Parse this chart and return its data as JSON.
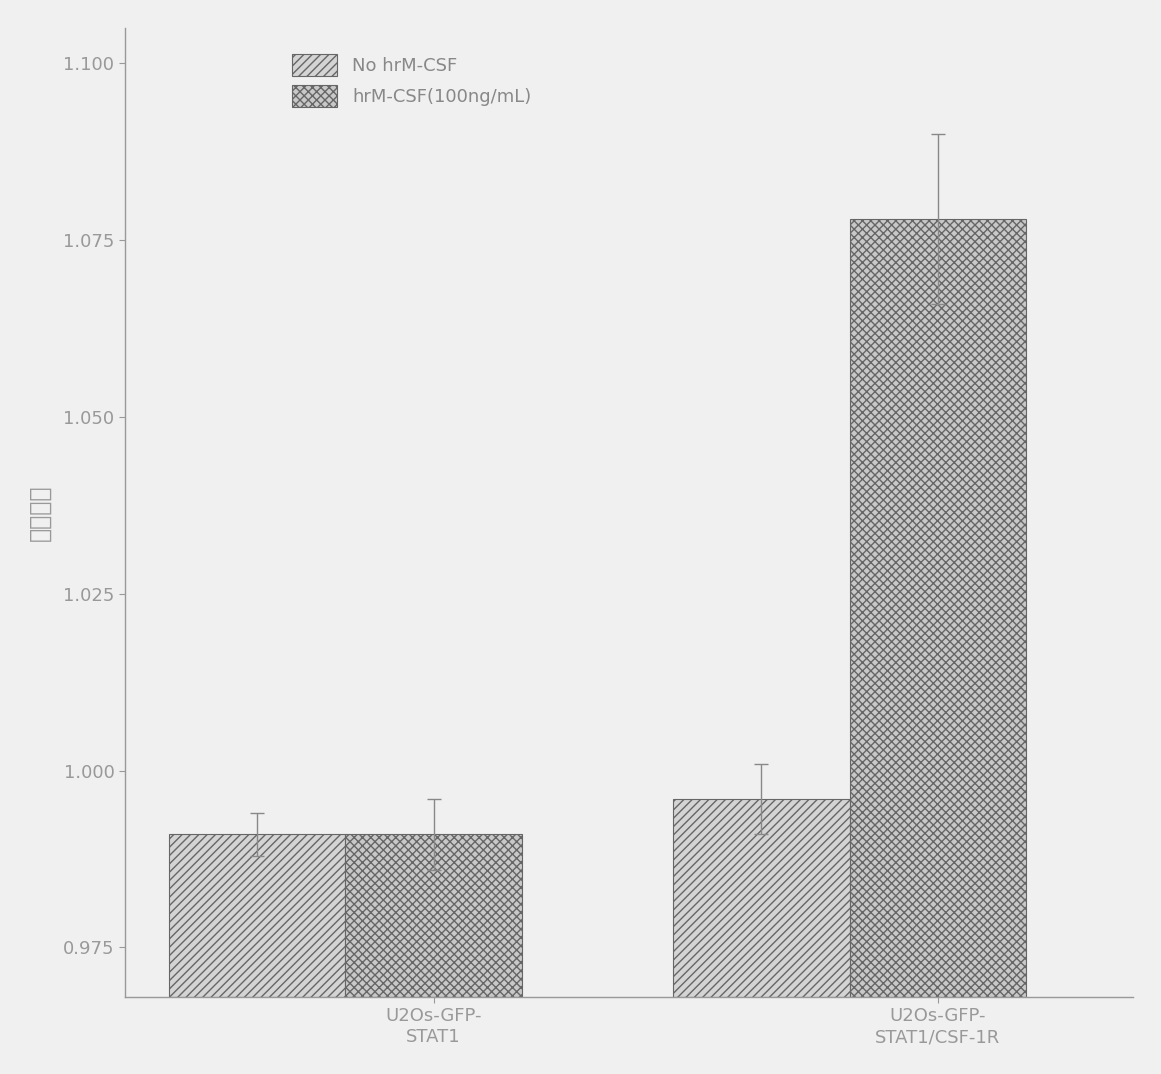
{
  "categories": [
    "U2Os-GFP-\nSTAT1",
    "U2Os-GFP-\nSTAT1/CSF-1R"
  ],
  "series": [
    {
      "label": "No hrM-CSF",
      "values": [
        0.991,
        0.996
      ],
      "errors": [
        0.003,
        0.005
      ],
      "hatch": "////",
      "facecolor": "#d4d4d4",
      "edgecolor": "#666666"
    },
    {
      "label": "hrM-CSF(100ng/mL)",
      "values": [
        0.991,
        1.078
      ],
      "errors": [
        0.005,
        0.012
      ],
      "hatch": "xxxx",
      "facecolor": "#c8c8c8",
      "edgecolor": "#666666"
    }
  ],
  "ylabel": "转核指数",
  "ylim": [
    0.968,
    1.105
  ],
  "yticks": [
    0.975,
    1.0,
    1.025,
    1.05,
    1.075,
    1.1
  ],
  "bar_width": 0.28,
  "group_positions": [
    0.3,
    1.1
  ],
  "xlim": [
    -0.05,
    1.55
  ],
  "xtick_positions": [
    0.44,
    1.24
  ],
  "title_fontsize": 14,
  "axis_fontsize": 15,
  "tick_fontsize": 13,
  "legend_fontsize": 13,
  "background_color": "#f0f0f0",
  "axis_color": "#999999",
  "errorbar_color": "#888888"
}
